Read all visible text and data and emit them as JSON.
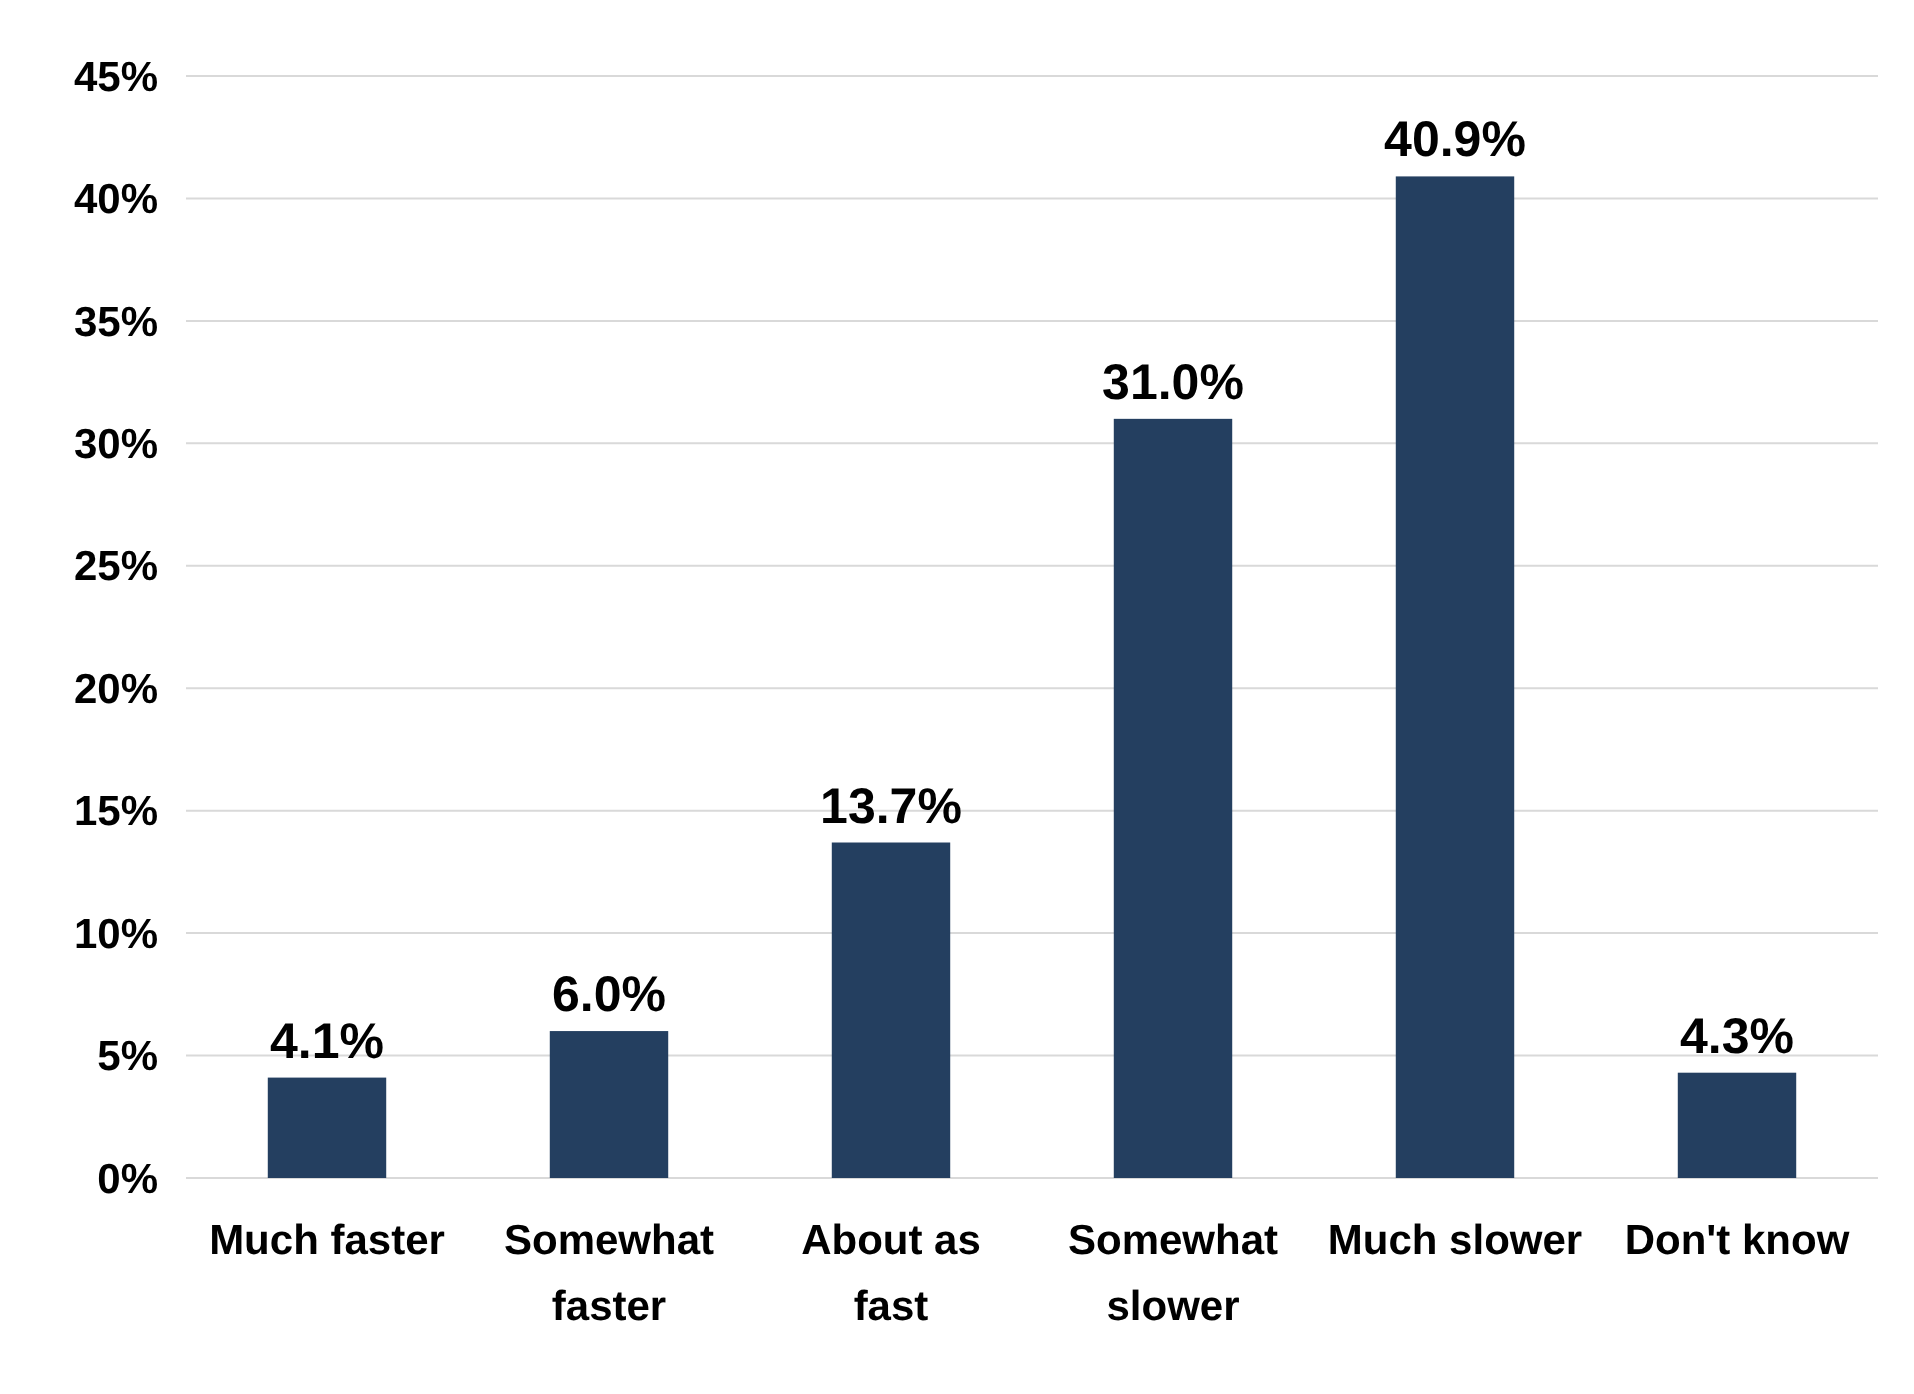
{
  "chart_data": {
    "type": "bar",
    "categories": [
      "Much faster",
      "Somewhat faster",
      "About as fast",
      "Somewhat slower",
      "Much slower",
      "Don't know"
    ],
    "values": [
      4.1,
      6.0,
      13.7,
      31.0,
      40.9,
      4.3
    ],
    "value_labels": [
      "4.1%",
      "6.0%",
      "13.7%",
      "31.0%",
      "40.9%",
      "4.3%"
    ],
    "color": "#243f60",
    "ylim": [
      0,
      45
    ],
    "yticks": [
      {
        "value": 0,
        "label": "0%"
      },
      {
        "value": 5,
        "label": "5%"
      },
      {
        "value": 10,
        "label": "10%"
      },
      {
        "value": 15,
        "label": "15%"
      },
      {
        "value": 20,
        "label": "20%"
      },
      {
        "value": 25,
        "label": "25%"
      },
      {
        "value": 30,
        "label": "30%"
      },
      {
        "value": 35,
        "label": "35%"
      },
      {
        "value": 40,
        "label": "40%"
      },
      {
        "value": 45,
        "label": "45%"
      }
    ],
    "grid": "y"
  }
}
